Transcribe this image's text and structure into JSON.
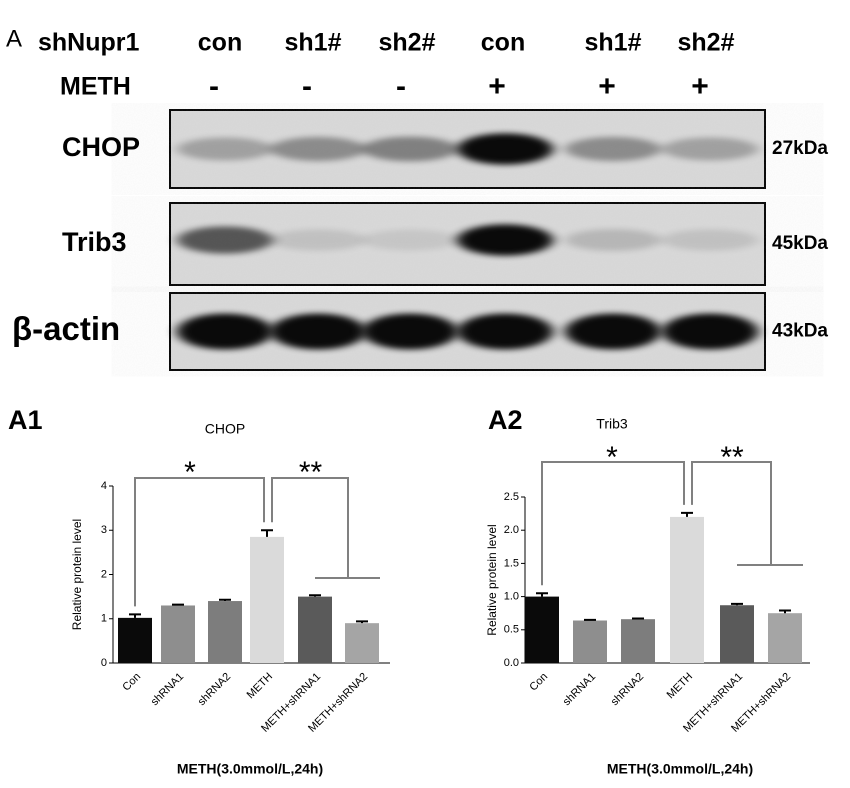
{
  "blot": {
    "panel_label": "A",
    "header_label": "shNupr1",
    "lanes": [
      "con",
      "sh1#",
      "sh2#",
      "con",
      "sh1#",
      "sh2#"
    ],
    "treatment_label": "METH",
    "treatment": [
      "-",
      "-",
      "-",
      "+",
      "+",
      "+"
    ],
    "rows": [
      {
        "label": "CHOP",
        "size": "27kDa"
      },
      {
        "label": "Trib3",
        "size": "45kDa"
      },
      {
        "label": "β-actin",
        "size": "43kDa"
      }
    ]
  },
  "chart_data": [
    {
      "type": "bar",
      "panel_label": "A1",
      "title": "CHOP",
      "ylabel": "Relative protein level",
      "xlabel": "METH(3.0mmol/L,24h)",
      "categories": [
        "Con",
        "shRNA1",
        "shRNA2",
        "METH",
        "METH+shRNA1",
        "METH+shRNA2"
      ],
      "values": [
        1.02,
        1.3,
        1.4,
        2.85,
        1.5,
        0.9
      ],
      "errors": [
        0.08,
        0.02,
        0.03,
        0.15,
        0.03,
        0.04
      ],
      "colors": [
        "#0a0a0a",
        "#8e8e8e",
        "#7d7d7d",
        "#dadada",
        "#5a5a5a",
        "#a5a5a5"
      ],
      "ylim": [
        0,
        4
      ],
      "yticks": [
        0,
        1,
        2,
        3,
        4
      ],
      "annotations": [
        "*",
        "**"
      ]
    },
    {
      "type": "bar",
      "panel_label": "A2",
      "title": "Trib3",
      "ylabel": "Relative protein level",
      "xlabel": "METH(3.0mmol/L,24h)",
      "categories": [
        "Con",
        "shRNA1",
        "shRNA2",
        "METH",
        "METH+shRNA1",
        "METH+shRNA2"
      ],
      "values": [
        1.0,
        0.64,
        0.66,
        2.2,
        0.87,
        0.75
      ],
      "errors": [
        0.05,
        0.01,
        0.01,
        0.06,
        0.02,
        0.04
      ],
      "colors": [
        "#0a0a0a",
        "#8e8e8e",
        "#7d7d7d",
        "#dadada",
        "#5a5a5a",
        "#a5a5a5"
      ],
      "ylim": [
        0,
        2.5
      ],
      "yticks": [
        {
          "value": 0,
          "label": "0.0"
        },
        0.5,
        {
          "value": 1,
          "label": "1.0"
        },
        1.5,
        {
          "value": 2,
          "label": "2.0"
        },
        2.5
      ],
      "annotations": [
        "*",
        "**"
      ]
    }
  ]
}
